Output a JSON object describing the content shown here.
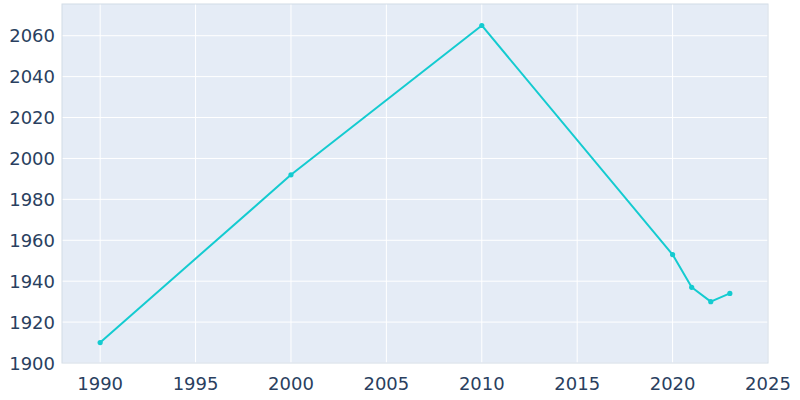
{
  "chart_data": {
    "type": "line",
    "x": [
      1990,
      2000,
      2010,
      2020,
      2021,
      2022,
      2023
    ],
    "values": [
      1910,
      1992,
      2065,
      1953,
      1937,
      1930,
      1934
    ],
    "color": "#14cbd0",
    "marker": "circle",
    "xlim": [
      1988,
      2025
    ],
    "xticks": [
      1990,
      1995,
      2000,
      2005,
      2010,
      2015,
      2020,
      2025
    ],
    "ylim": [
      1900,
      2075.5
    ],
    "yticks": [
      1900,
      1920,
      1940,
      1960,
      1980,
      2000,
      2020,
      2040,
      2060
    ],
    "grid": true
  }
}
